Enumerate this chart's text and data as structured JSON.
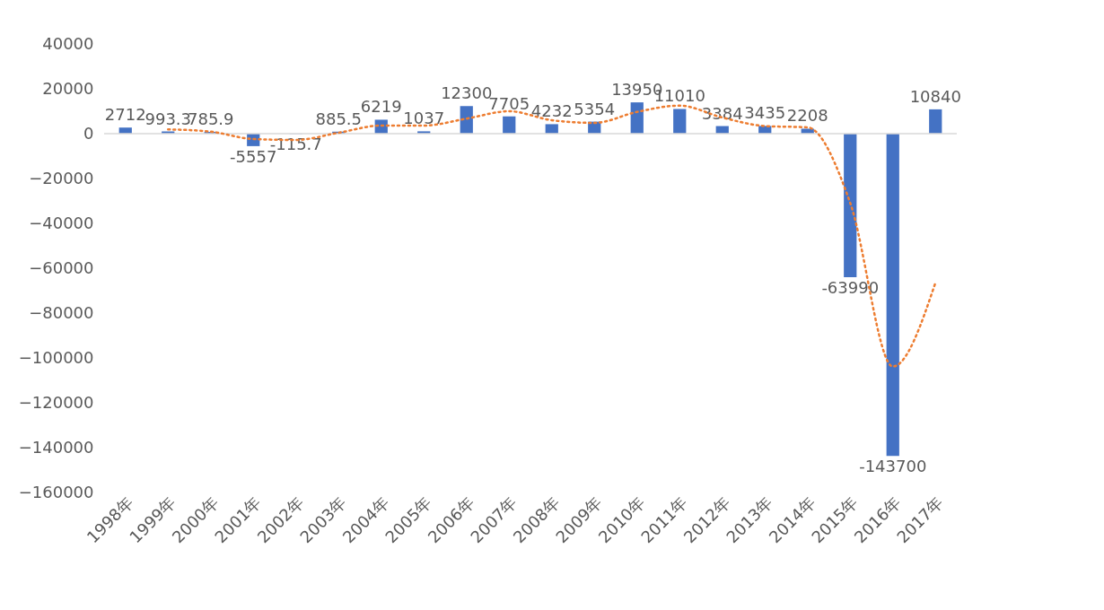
{
  "chart_data": {
    "type": "bar",
    "categories": [
      "1998年",
      "1999年",
      "2000年",
      "2001年",
      "2002年",
      "2003年",
      "2004年",
      "2005年",
      "2006年",
      "2007年",
      "2008年",
      "2009年",
      "2010年",
      "2011年",
      "2012年",
      "2013年",
      "2014年",
      "2015年",
      "2016年",
      "2017年"
    ],
    "series": [
      {
        "color": "#4472c4",
        "values": [
          2712,
          993.3,
          785.9,
          -5557,
          -115.7,
          885.5,
          6219,
          1037,
          12300,
          7705,
          4232,
          5354,
          13950,
          11010,
          3384,
          3435,
          2208,
          -63990,
          -143700,
          10840
        ],
        "value_labels": [
          "2712",
          "993.3",
          "785.9",
          "-5557",
          "-115.7",
          "885.5",
          "6219",
          "1037",
          "12300",
          "7705",
          "4232",
          "5354",
          "13950",
          "11010",
          "3384",
          "3435",
          "2208",
          "-63990",
          "-143700",
          "10840"
        ]
      },
      {
        "type": "line",
        "color": "#ed7d31",
        "line_style": "dotted",
        "values": [
          null,
          1900,
          900,
          -2400,
          -2800,
          400,
          3600,
          3600,
          6700,
          10000,
          6000,
          4800,
          9700,
          12500,
          7200,
          3400,
          2800,
          -30900,
          -103800,
          -66400
        ]
      }
    ],
    "ref_lines": [
      {
        "axis": "y",
        "value": 0,
        "color": "#d9d9d9"
      }
    ],
    "ylim": [
      -160000,
      40000
    ],
    "yticks": [
      -160000,
      -140000,
      -120000,
      -100000,
      -80000,
      -60000,
      -40000,
      -20000,
      0,
      20000,
      40000
    ]
  }
}
